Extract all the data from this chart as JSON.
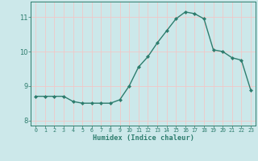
{
  "x": [
    0,
    1,
    2,
    3,
    4,
    5,
    6,
    7,
    8,
    9,
    10,
    11,
    12,
    13,
    14,
    15,
    16,
    17,
    18,
    19,
    20,
    21,
    22,
    23
  ],
  "y": [
    8.7,
    8.7,
    8.7,
    8.7,
    8.55,
    8.5,
    8.5,
    8.5,
    8.5,
    8.6,
    9.0,
    9.55,
    9.85,
    10.25,
    10.6,
    10.95,
    11.15,
    11.1,
    10.95,
    10.05,
    10.0,
    9.82,
    9.75,
    8.88
  ],
  "xlabel": "Humidex (Indice chaleur)",
  "xlim": [
    -0.5,
    23.5
  ],
  "ylim": [
    7.85,
    11.45
  ],
  "yticks": [
    8,
    9,
    10,
    11
  ],
  "xticks": [
    0,
    1,
    2,
    3,
    4,
    5,
    6,
    7,
    8,
    9,
    10,
    11,
    12,
    13,
    14,
    15,
    16,
    17,
    18,
    19,
    20,
    21,
    22,
    23
  ],
  "xtick_labels": [
    "0",
    "1",
    "2",
    "3",
    "4",
    "5",
    "6",
    "7",
    "8",
    "9",
    "10",
    "11",
    "12",
    "13",
    "14",
    "15",
    "16",
    "17",
    "18",
    "19",
    "20",
    "21",
    "22",
    "23"
  ],
  "line_color": "#2e7d6e",
  "marker": "D",
  "marker_size": 2.0,
  "bg_color": "#cce8ea",
  "grid_color": "#f0c8c8",
  "grid_linewidth": 0.6,
  "line_width": 1.0,
  "spine_color": "#2e7d6e",
  "tick_color": "#2e7d6e",
  "label_color": "#2e7d6e"
}
